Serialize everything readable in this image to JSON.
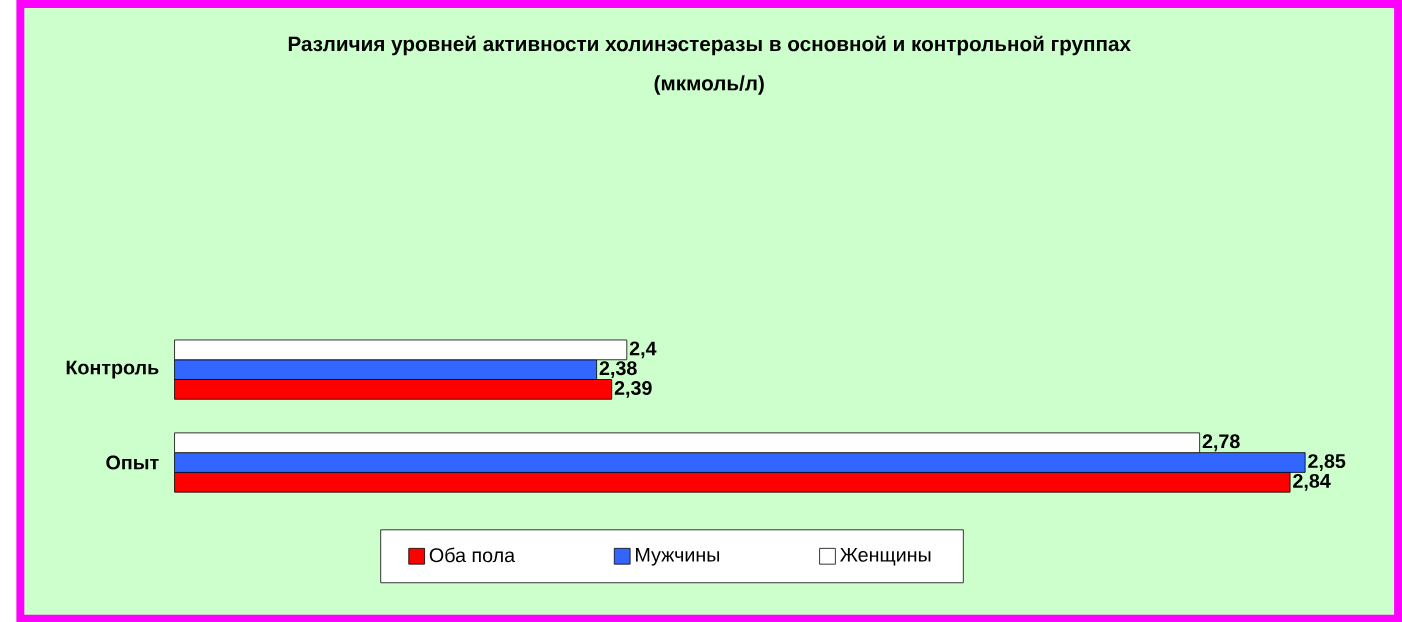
{
  "chart_data": {
    "type": "bar",
    "orientation": "horizontal",
    "title": "Различия уровней активности холинэстеразы в основной и контрольной группах",
    "subtitle": "(мкмоль/л)",
    "categories": [
      "Контроль",
      "Опыт"
    ],
    "series": [
      {
        "name": "Оба пола",
        "color": "#ff0000",
        "values": [
          2.39,
          2.84
        ],
        "value_labels": [
          "2,39",
          "2,84"
        ]
      },
      {
        "name": "Мужчины",
        "color": "#3366ff",
        "values": [
          2.38,
          2.85
        ],
        "value_labels": [
          "2,38",
          "2,85"
        ]
      },
      {
        "name": "Женщины",
        "color": "#ffffff",
        "values": [
          2.4,
          2.78
        ],
        "value_labels": [
          "2,4",
          "2,78"
        ]
      }
    ],
    "xlim": [
      2.1,
      2.85
    ],
    "tick_labels": "y",
    "legend": "bottom"
  }
}
